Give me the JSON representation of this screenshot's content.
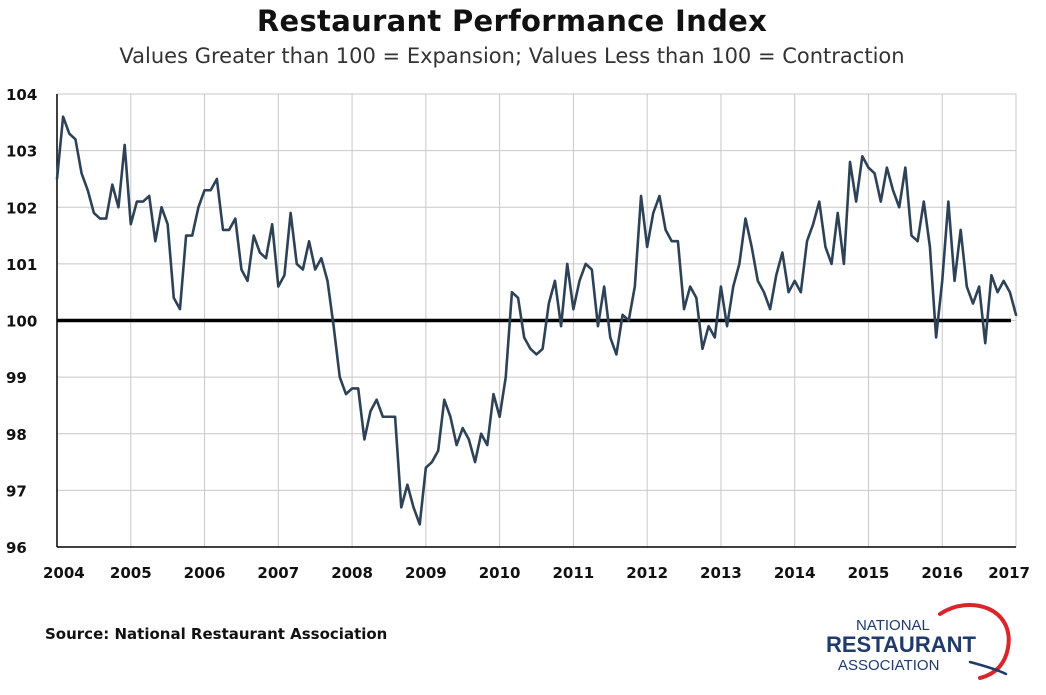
{
  "chart_data": {
    "type": "line",
    "title": "Restaurant Performance Index",
    "subtitle": "Values Greater than 100 = Expansion; Values Less than 100 = Contraction",
    "xlabel": "",
    "ylabel": "",
    "xlim": [
      2004,
      2017
    ],
    "ylim": [
      96,
      104
    ],
    "y_ticks": [
      96,
      97,
      98,
      99,
      100,
      101,
      102,
      103,
      104
    ],
    "x_ticks": [
      "2004",
      "2005",
      "2006",
      "2007",
      "2008",
      "2009",
      "2010",
      "2011",
      "2012",
      "2013",
      "2014",
      "2015",
      "2016",
      "2017"
    ],
    "reference_line": 100,
    "grid": true,
    "series": [
      {
        "color": "#2e4257",
        "x": [
          2004.0,
          2004.083,
          2004.167,
          2004.25,
          2004.333,
          2004.417,
          2004.5,
          2004.583,
          2004.667,
          2004.75,
          2004.833,
          2004.917,
          2005.0,
          2005.083,
          2005.167,
          2005.25,
          2005.333,
          2005.417,
          2005.5,
          2005.583,
          2005.667,
          2005.75,
          2005.833,
          2005.917,
          2006.0,
          2006.083,
          2006.167,
          2006.25,
          2006.333,
          2006.417,
          2006.5,
          2006.583,
          2006.667,
          2006.75,
          2006.833,
          2006.917,
          2007.0,
          2007.083,
          2007.167,
          2007.25,
          2007.333,
          2007.417,
          2007.5,
          2007.583,
          2007.667,
          2007.75,
          2007.833,
          2007.917,
          2008.0,
          2008.083,
          2008.167,
          2008.25,
          2008.333,
          2008.417,
          2008.5,
          2008.583,
          2008.667,
          2008.75,
          2008.833,
          2008.917,
          2009.0,
          2009.083,
          2009.167,
          2009.25,
          2009.333,
          2009.417,
          2009.5,
          2009.583,
          2009.667,
          2009.75,
          2009.833,
          2009.917,
          2010.0,
          2010.083,
          2010.167,
          2010.25,
          2010.333,
          2010.417,
          2010.5,
          2010.583,
          2010.667,
          2010.75,
          2010.833,
          2010.917,
          2011.0,
          2011.083,
          2011.167,
          2011.25,
          2011.333,
          2011.417,
          2011.5,
          2011.583,
          2011.667,
          2011.75,
          2011.833,
          2011.917,
          2012.0,
          2012.083,
          2012.167,
          2012.25,
          2012.333,
          2012.417,
          2012.5,
          2012.583,
          2012.667,
          2012.75,
          2012.833,
          2012.917,
          2013.0,
          2013.083,
          2013.167,
          2013.25,
          2013.333,
          2013.417,
          2013.5,
          2013.583,
          2013.667,
          2013.75,
          2013.833,
          2013.917,
          2014.0,
          2014.083,
          2014.167,
          2014.25,
          2014.333,
          2014.417,
          2014.5,
          2014.583,
          2014.667,
          2014.75,
          2014.833,
          2014.917,
          2015.0,
          2015.083,
          2015.167,
          2015.25,
          2015.333,
          2015.417,
          2015.5,
          2015.583,
          2015.667,
          2015.75,
          2015.833,
          2015.917,
          2016.0,
          2016.083,
          2016.167,
          2016.25,
          2016.333,
          2016.417,
          2016.5,
          2016.583,
          2016.667,
          2016.75,
          2016.833,
          2016.917,
          2017.0
        ],
        "values": [
          102.5,
          103.6,
          103.3,
          103.2,
          102.6,
          102.3,
          101.9,
          101.8,
          101.8,
          102.4,
          102.0,
          103.1,
          101.7,
          102.1,
          102.1,
          102.2,
          101.4,
          102.0,
          101.7,
          100.4,
          100.2,
          101.5,
          101.5,
          102.0,
          102.3,
          102.3,
          102.5,
          101.6,
          101.6,
          101.8,
          100.9,
          100.7,
          101.5,
          101.2,
          101.1,
          101.7,
          100.6,
          100.8,
          101.9,
          101.0,
          100.9,
          101.4,
          100.9,
          101.1,
          100.7,
          99.9,
          99.0,
          98.7,
          98.8,
          98.8,
          97.9,
          98.4,
          98.6,
          98.3,
          98.3,
          98.3,
          96.7,
          97.1,
          96.7,
          96.4,
          97.4,
          97.5,
          97.7,
          98.6,
          98.3,
          97.8,
          98.1,
          97.9,
          97.5,
          98.0,
          97.8,
          98.7,
          98.3,
          99.0,
          100.5,
          100.4,
          99.7,
          99.5,
          99.4,
          99.5,
          100.3,
          100.7,
          99.9,
          101.0,
          100.2,
          100.7,
          101.0,
          100.9,
          99.9,
          100.6,
          99.7,
          99.4,
          100.1,
          100.0,
          100.6,
          102.2,
          101.3,
          101.9,
          102.2,
          101.6,
          101.4,
          101.4,
          100.2,
          100.6,
          100.4,
          99.5,
          99.9,
          99.7,
          100.6,
          99.9,
          100.6,
          101.0,
          101.8,
          101.3,
          100.7,
          100.5,
          100.2,
          100.8,
          101.2,
          100.5,
          100.7,
          100.5,
          101.4,
          101.7,
          102.1,
          101.3,
          101.0,
          101.9,
          101.0,
          102.8,
          102.1,
          102.9,
          102.7,
          102.6,
          102.1,
          102.7,
          102.3,
          102.0,
          102.7,
          101.5,
          101.4,
          102.1,
          101.3,
          99.7,
          100.7,
          102.1,
          100.7,
          101.6,
          100.6,
          100.3,
          100.6,
          99.6,
          100.8,
          100.5,
          100.7,
          100.5,
          100.1
        ]
      }
    ]
  },
  "source_text": "Source: National Restaurant Association",
  "logo": {
    "line1": "NATIONAL",
    "line2": "RESTAURANT",
    "line3": "ASSOCIATION",
    "text_color": "#1f3a6b",
    "swoosh_color": "#d9262c"
  },
  "colors": {
    "line": "#2e4257",
    "reference_line": "#000000",
    "grid": "#c8c8c8",
    "axis": "#000000"
  }
}
